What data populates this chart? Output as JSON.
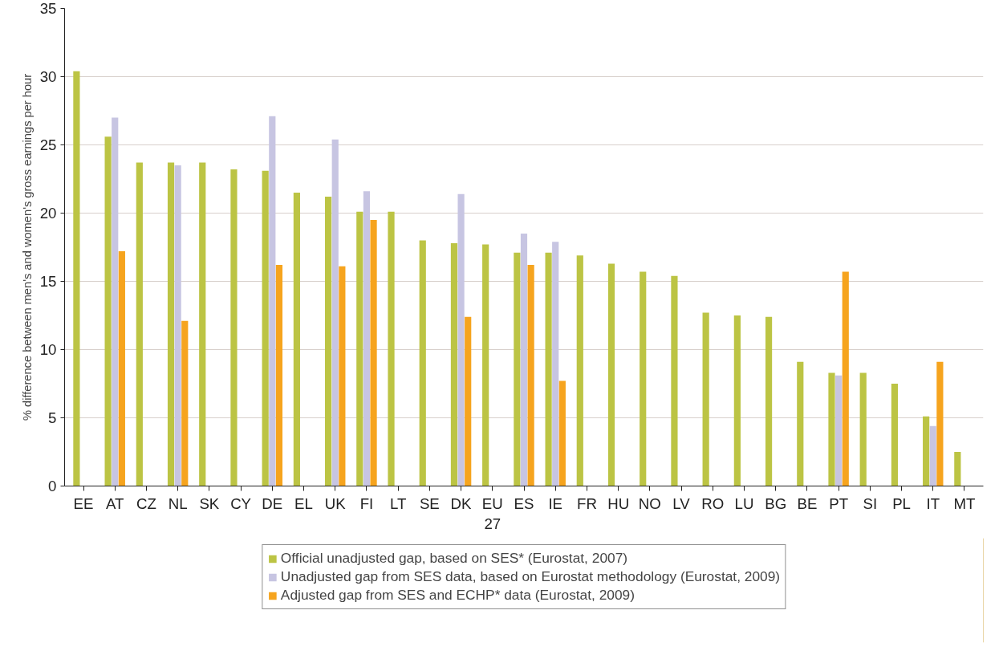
{
  "chart_data": {
    "type": "bar",
    "ylabel": "% difference between men's and women's gross earnings per hour",
    "categories": [
      "EE",
      "AT",
      "CZ",
      "NL",
      "SK",
      "CY",
      "DE",
      "EL",
      "UK",
      "FI",
      "LT",
      "SE",
      "DK",
      "EU 27",
      "ES",
      "IE",
      "FR",
      "HU",
      "NO",
      "LV",
      "RO",
      "LU",
      "BG",
      "BE",
      "PT",
      "SI",
      "PL",
      "IT",
      "MT"
    ],
    "series": [
      {
        "name": "Official unadjusted gap, based on SES* (Eurostat, 2007)",
        "color": "#bcc444",
        "values": [
          30.4,
          25.6,
          23.7,
          23.7,
          23.7,
          23.2,
          23.1,
          21.5,
          21.2,
          20.1,
          20.1,
          18.0,
          17.8,
          17.7,
          17.1,
          17.1,
          16.9,
          16.3,
          15.7,
          15.4,
          12.7,
          12.5,
          12.4,
          9.1,
          8.3,
          8.3,
          7.5,
          5.1,
          2.5
        ]
      },
      {
        "name": "Unadjusted gap from SES data, based on Eurostat methodology (Eurostat, 2009)",
        "color": "#c7c5e2",
        "values": [
          null,
          27.0,
          null,
          23.5,
          null,
          null,
          27.1,
          null,
          25.4,
          21.6,
          null,
          null,
          21.4,
          null,
          18.5,
          17.9,
          null,
          null,
          null,
          null,
          null,
          null,
          null,
          null,
          8.1,
          null,
          null,
          4.4,
          null
        ]
      },
      {
        "name": "Adjusted gap from SES and ECHP* data (Eurostat, 2009)",
        "color": "#f6a41e",
        "values": [
          null,
          17.2,
          null,
          12.1,
          null,
          null,
          16.2,
          null,
          16.1,
          19.5,
          null,
          null,
          12.4,
          null,
          16.2,
          7.7,
          null,
          null,
          null,
          null,
          null,
          null,
          null,
          null,
          15.7,
          null,
          null,
          9.1,
          null
        ]
      }
    ],
    "ylim": [
      0,
      35
    ],
    "yticks": [
      0,
      5,
      10,
      15,
      20,
      25,
      30,
      35
    ],
    "grid": "y",
    "legend": "bottom"
  }
}
